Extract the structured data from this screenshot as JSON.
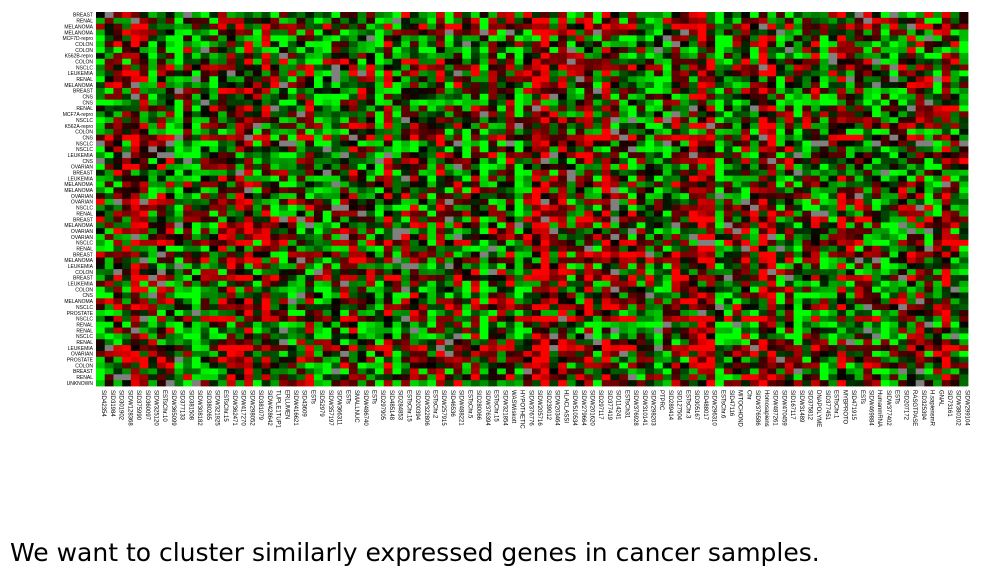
{
  "colors": {
    "background": "#ffffff",
    "low": "#00ff00",
    "mid": "#000000",
    "high": "#ff0000",
    "missing": "#808080",
    "text": "#000000"
  },
  "caption": "We want to cluster similarly expressed genes in cancer samples.",
  "chart_data": {
    "type": "heatmap",
    "title": "",
    "xlabel": "",
    "ylabel": "",
    "grid": false,
    "legend": "none",
    "color_scale": [
      "green (low)",
      "black (mid)",
      "red (high)",
      "gray (missing)"
    ],
    "seed": 20240611,
    "num_columns": 100,
    "rows": [
      "BREAST",
      "RENAL",
      "MELANOMA",
      "MELANOMA",
      "MCF7D-repro",
      "COLON",
      "COLON",
      "K562B-repro",
      "COLON",
      "NSCLC",
      "LEUKEMIA",
      "RENAL",
      "MELANOMA",
      "BREAST",
      "CNS",
      "CNS",
      "RENAL",
      "MCF7A-repro",
      "NSCLC",
      "K562A-repro",
      "COLON",
      "CNS",
      "NSCLC",
      "NSCLC",
      "LEUKEMIA",
      "CNS",
      "OVARIAN",
      "BREAST",
      "LEUKEMIA",
      "MELANOMA",
      "MELANOMA",
      "OVARIAN",
      "OVARIAN",
      "NSCLC",
      "RENAL",
      "BREAST",
      "MELANOMA",
      "OVARIAN",
      "OVARIAN",
      "NSCLC",
      "RENAL",
      "BREAST",
      "MELANOMA",
      "LEUKEMIA",
      "COLON",
      "BREAST",
      "LEUKEMIA",
      "COLON",
      "CNS",
      "MELANOMA",
      "NSCLC",
      "PROSTATE",
      "NSCLC",
      "RENAL",
      "RENAL",
      "NSCLC",
      "RENAL",
      "LEUKEMIA",
      "OVARIAN",
      "PROSTATE",
      "COLON",
      "BREAST",
      "RENAL",
      "UNKNOWN"
    ],
    "columns": [
      "SID42354",
      "SID31984",
      "SID301902",
      "SIDW128368",
      "SID375990",
      "SID360097",
      "SIDW325120",
      "ESTsChr.10",
      "SIDW365099",
      "SID377133",
      "SID381508",
      "SIDW308182",
      "SID380265",
      "SIDW321925",
      "ESTsChr.15",
      "SIDW362471",
      "SIDW417270",
      "SIDW298052",
      "SID381079",
      "SIDW428642",
      "TUPLE1TUP1",
      "ERLUMEN",
      "SIDW416621",
      "SID43609",
      "ESTs",
      "SID52979",
      "SIDW357197",
      "SIDW366311",
      "ESTs",
      "SMALLNUC",
      "SIDW486740",
      "ESTs",
      "SID297905",
      "SID485148",
      "SID284853",
      "ESTsChr.15",
      "SID200394",
      "SIDW322806",
      "ESTsChr.2",
      "SIDW257915",
      "SID46536",
      "SIDW488221",
      "ESTsChr.5",
      "SID280066",
      "SIDW376394",
      "ESTsChr.15",
      "SIDW321854",
      "WASWiskott",
      "HYPOTHETIC",
      "SIDW376776",
      "SIDW205716",
      "SID239012",
      "SIDW203464",
      "HLACLASSI",
      "SIDW510534",
      "SIDW279664",
      "SIDW201620",
      "SID297117",
      "SID377419",
      "SID114241",
      "ESTsCh31",
      "SIDW376928",
      "SIDW310141",
      "SIDW298203",
      "PTPRC",
      "SID289414",
      "SID127504",
      "ESTsChr.3",
      "SID305167",
      "SID488017",
      "SIDW296310",
      "ESTsChr.6",
      "SID47116",
      "MITOCHOND",
      "Chr",
      "SIDW376586",
      "Homosapiens",
      "SIDW487261",
      "SIDW470459",
      "SID167117",
      "SIDW31489",
      "SID375812",
      "DNAPOLYME",
      "SID377451",
      "ESTsChr.1",
      "MYBPROTO",
      "SID471915",
      "ESTs",
      "SIDW469884",
      "HumanmRNA",
      "SIDW377402",
      "ESTs",
      "SID207172",
      "RASGTPASE",
      "SID325394",
      "H.sapiensmR",
      "GNAL",
      "SID73161",
      "SIDW380102",
      "SIDW299104"
    ]
  }
}
